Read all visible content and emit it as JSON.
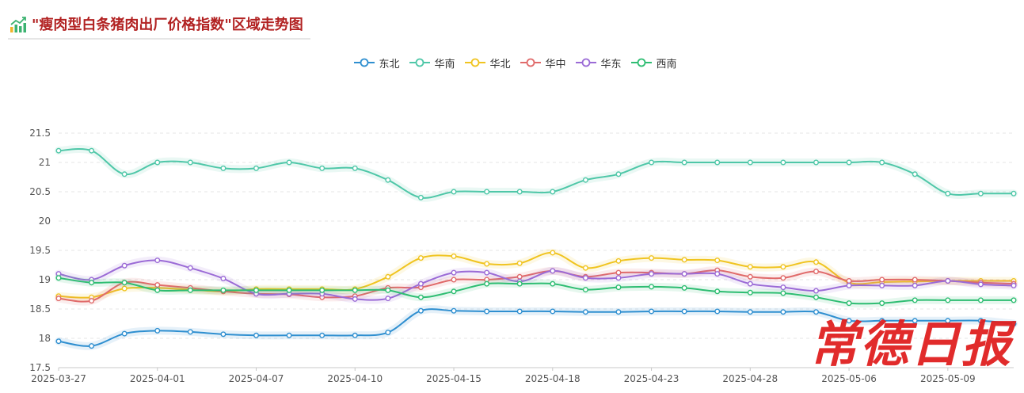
{
  "header": {
    "title": "\"瘦肉型白条猪肉出厂价格指数\"区域走势图",
    "icon": "bar-chart-trend-icon"
  },
  "watermark": {
    "text": "常德日报"
  },
  "chart_data": {
    "type": "line",
    "smooth": true,
    "ylim": [
      17.5,
      21.5
    ],
    "yticks": [
      17.5,
      18,
      18.5,
      19,
      19.5,
      20,
      20.5,
      21,
      21.5
    ],
    "ytick_labels": [
      "17.5",
      "18",
      "18.5",
      "19",
      "19.5",
      "20",
      "20.5",
      "21",
      "21.5"
    ],
    "grid": "horizontal-dashed",
    "legend_position": "top-center",
    "x_labels": [
      "2025-03-27",
      "2025-04-01",
      "2025-04-07",
      "2025-04-10",
      "2025-04-15",
      "2025-04-18",
      "2025-04-23",
      "2025-04-28",
      "2025-05-06",
      "2025-05-09"
    ],
    "x_label_point_index": [
      0,
      3,
      6,
      9,
      12,
      15,
      18,
      21,
      24,
      27
    ],
    "point_count": 30,
    "series": [
      {
        "name": "东北",
        "color": "#2f8fd0",
        "values": [
          17.95,
          17.87,
          18.08,
          18.13,
          18.11,
          18.07,
          18.05,
          18.05,
          18.05,
          18.05,
          18.1,
          18.47,
          18.47,
          18.46,
          18.46,
          18.46,
          18.45,
          18.45,
          18.46,
          18.46,
          18.46,
          18.45,
          18.45,
          18.45,
          18.3,
          18.3,
          18.3,
          18.3,
          18.3,
          18.25
        ]
      },
      {
        "name": "华南",
        "color": "#4fc7a8",
        "values": [
          21.2,
          21.2,
          20.8,
          21.0,
          21.0,
          20.9,
          20.9,
          21.0,
          20.9,
          20.9,
          20.7,
          20.4,
          20.5,
          20.5,
          20.5,
          20.5,
          20.7,
          20.8,
          21.0,
          21.0,
          21.0,
          21.0,
          21.0,
          21.0,
          21.0,
          21.0,
          20.8,
          20.47,
          20.47,
          20.47
        ]
      },
      {
        "name": "华北",
        "color": "#f0c420",
        "values": [
          18.72,
          18.7,
          18.85,
          18.86,
          18.83,
          18.8,
          18.84,
          18.84,
          18.84,
          18.84,
          19.05,
          19.37,
          19.4,
          19.27,
          19.28,
          19.46,
          19.2,
          19.32,
          19.37,
          19.34,
          19.33,
          19.22,
          19.22,
          19.3,
          18.95,
          18.96,
          18.97,
          18.98,
          18.98,
          18.98
        ]
      },
      {
        "name": "华中",
        "color": "#e06a6a",
        "values": [
          18.68,
          18.64,
          18.95,
          18.91,
          18.86,
          18.8,
          18.76,
          18.75,
          18.7,
          18.72,
          18.86,
          18.87,
          19.0,
          19.0,
          19.05,
          19.15,
          19.05,
          19.12,
          19.12,
          19.1,
          19.16,
          19.05,
          19.03,
          19.14,
          18.98,
          19.0,
          19.0,
          18.98,
          18.95,
          18.93
        ]
      },
      {
        "name": "华东",
        "color": "#9b6bd6",
        "values": [
          19.1,
          19.0,
          19.24,
          19.33,
          19.2,
          19.02,
          18.76,
          18.76,
          18.76,
          18.67,
          18.68,
          18.93,
          19.12,
          19.12,
          18.97,
          19.15,
          19.03,
          19.03,
          19.1,
          19.1,
          19.1,
          18.93,
          18.87,
          18.81,
          18.9,
          18.9,
          18.9,
          18.98,
          18.92,
          18.9
        ]
      },
      {
        "name": "西南",
        "color": "#2ebd72",
        "values": [
          19.03,
          18.95,
          18.95,
          18.82,
          18.82,
          18.82,
          18.82,
          18.82,
          18.82,
          18.82,
          18.82,
          18.7,
          18.8,
          18.93,
          18.93,
          18.93,
          18.83,
          18.87,
          18.88,
          18.86,
          18.8,
          18.78,
          18.77,
          18.7,
          18.6,
          18.6,
          18.65,
          18.65,
          18.65,
          18.65
        ]
      }
    ]
  }
}
